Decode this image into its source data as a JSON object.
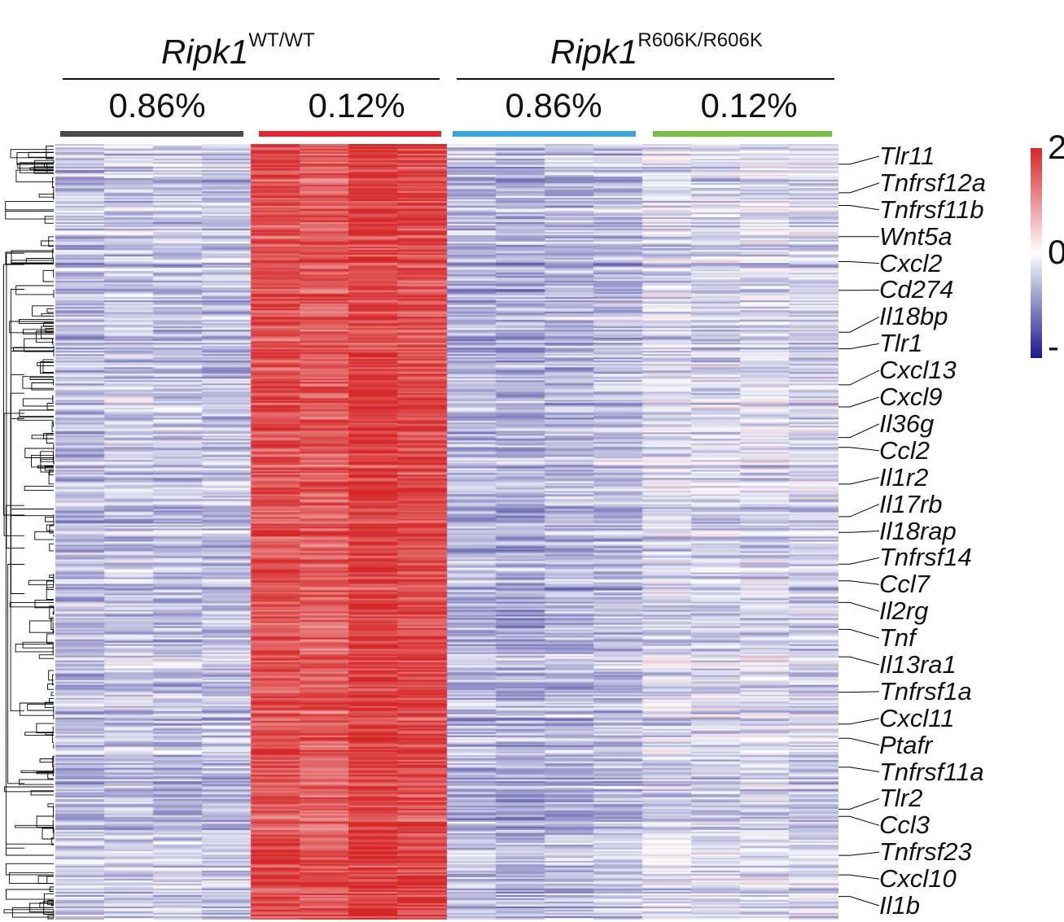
{
  "chart_data": {
    "type": "heatmap",
    "groups": [
      {
        "genotype": "Ripk1",
        "superscript": "WT/WT",
        "conditions": [
          "0.86%",
          "0.12%"
        ]
      },
      {
        "genotype": "Ripk1",
        "superscript": "R606K/R606K",
        "conditions": [
          "0.86%",
          "0.12%"
        ]
      }
    ],
    "condition_colors": [
      "#4a4a4a",
      "#e8262d",
      "#3aa6e3",
      "#76c043"
    ],
    "samples_per_condition": 4,
    "column_mean_z": [
      -0.55,
      -0.45,
      -0.5,
      -0.5,
      1.6,
      1.5,
      1.8,
      1.7,
      -0.6,
      -0.7,
      -0.6,
      -0.55,
      -0.3,
      -0.35,
      -0.3,
      -0.35
    ],
    "color_scale": {
      "min_label": "-",
      "mid_label": "0",
      "max_label": "2",
      "low_color": "#1a1a8c",
      "mid_color": "#ffffff",
      "high_color": "#d62728"
    },
    "highlighted_genes": [
      "Tlr11",
      "Tnfrsf12a",
      "Tnfrsf11b",
      "Wnt5a",
      "Cxcl2",
      "Cd274",
      "Il18bp",
      "Tlr1",
      "Cxcl13",
      "Cxcl9",
      "Il36g",
      "Ccl2",
      "Il1r2",
      "Il17rb",
      "Il18rap",
      "Tnfrsf14",
      "Ccl7",
      "Il2rg",
      "Tnf",
      "Il13ra1",
      "Tnfrsf1a",
      "Cxcl11",
      "Ptafr",
      "Tnfrsf11a",
      "Tlr2",
      "Ccl3",
      "Tnfrsf23",
      "Cxcl10",
      "Il1b"
    ],
    "row_dendrogram": true
  }
}
